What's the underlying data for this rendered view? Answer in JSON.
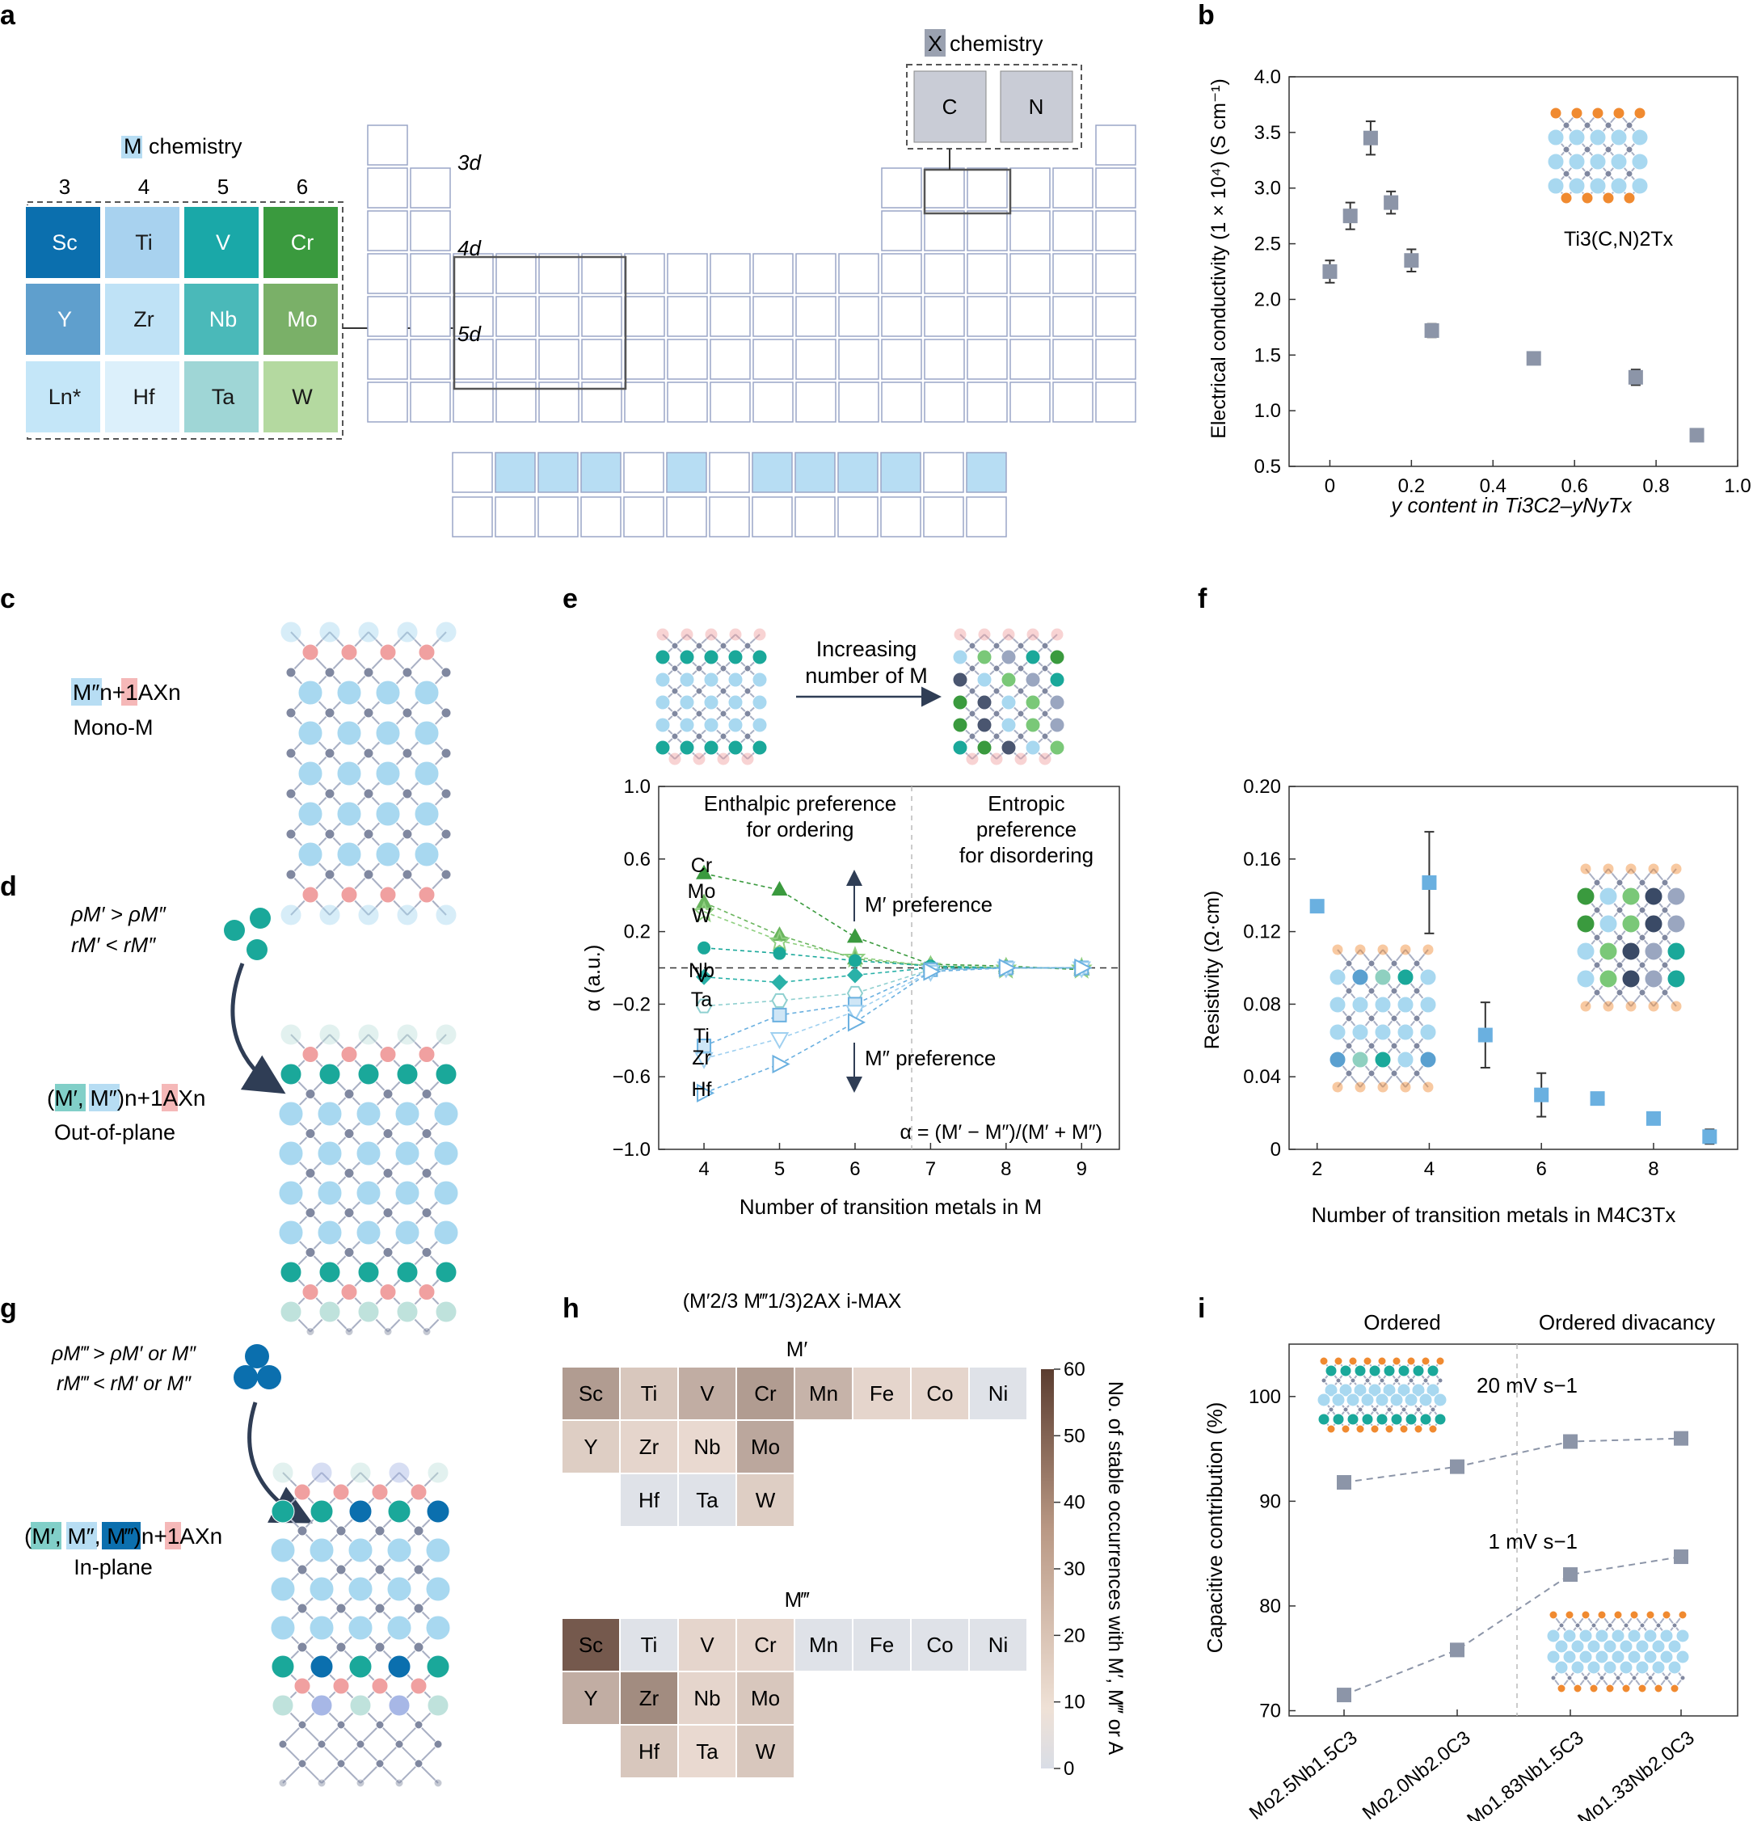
{
  "panel_labels": [
    "a",
    "b",
    "c",
    "d",
    "e",
    "f",
    "g",
    "h",
    "i"
  ],
  "colors": {
    "teal": "#1aa89a",
    "light_blue": "#b7ddf3",
    "green": "#3a9a3e",
    "pink": "#f0a0a0",
    "grey_marker": "#8c95a8",
    "axis": "#333333",
    "box_grey": "#c9ccd6"
  },
  "panel_a": {
    "m_header": "M",
    "m_header_suffix": "chemistry",
    "x_header": "X",
    "x_header_suffix": "chemistry",
    "groups": [
      "3",
      "4",
      "5",
      "6"
    ],
    "elements": [
      [
        "Sc",
        "Ti",
        "V",
        "Cr"
      ],
      [
        "Y",
        "Zr",
        "Nb",
        "Mo"
      ],
      [
        "Ln*",
        "Hf",
        "Ta",
        "W"
      ]
    ],
    "element_colors": [
      [
        "#0b6fae",
        "#a8d2ef",
        "#1aa8a8",
        "#3a9a3e"
      ],
      [
        "#5f9fcd",
        "#bfe2f6",
        "#4ab9b9",
        "#7ab068"
      ],
      [
        "#c4e6f8",
        "#dcf0fb",
        "#9fd6d6",
        "#b4d9a0"
      ]
    ],
    "x_elements": [
      "C",
      "N"
    ],
    "shell_labels": [
      "3d",
      "4d",
      "5d"
    ]
  },
  "panel_b": {
    "chart_data": {
      "type": "scatter",
      "xlabel": "y content in Ti3C2–yNyTx",
      "ylabel": "Electrical conductivity (1 × 10⁴) (S cm⁻¹)",
      "x_ticks": [
        "0",
        "0.2",
        "0.4",
        "0.6",
        "0.8",
        "1.0"
      ],
      "y_ticks": [
        "0.5",
        "1.0",
        "1.5",
        "2.0",
        "2.5",
        "3.0",
        "3.5",
        "4.0"
      ],
      "xlim": [
        -0.1,
        1.0
      ],
      "ylim": [
        0.5,
        4.0
      ],
      "x": [
        0,
        0.05,
        0.1,
        0.15,
        0.2,
        0.25,
        0.5,
        0.75,
        0.9
      ],
      "y": [
        2.25,
        2.75,
        3.45,
        2.87,
        2.35,
        1.72,
        1.47,
        1.3,
        0.78
      ],
      "err": [
        0.1,
        0.12,
        0.15,
        0.1,
        0.1,
        0.06,
        0.04,
        0.07,
        0.04
      ],
      "inset_label": "Ti3(C,N)2Tx"
    }
  },
  "panel_c": {
    "formula": "M″n+1AXn",
    "caption": "Mono-M"
  },
  "panel_d": {
    "rule1": "ρM′ > ρM″",
    "rule2": "rM′ < rM″",
    "formula": "(M′, M″)n+1AXn",
    "caption": "Out-of-plane"
  },
  "panel_g": {
    "rule1": "ρM‴ > ρM′ or M″",
    "rule2": "rM‴ < rM′ or M″",
    "formula": "(M′, M″, M‴)n+1AXn",
    "caption": "In-plane"
  },
  "panel_e": {
    "arrow_label_1": "Increasing",
    "arrow_label_2": "number of M",
    "chart_data": {
      "type": "scatter",
      "xlabel": "Number of transition metals in M",
      "ylabel": "α (a.u.)",
      "x_ticks": [
        "4",
        "5",
        "6",
        "7",
        "8",
        "9"
      ],
      "y_ticks": [
        "1.0",
        "0.6",
        "0.2",
        "−0.2",
        "−0.6",
        "−1.0"
      ],
      "xlim": [
        3.4,
        9.5
      ],
      "ylim": [
        -1.0,
        1.0
      ],
      "region_left": "Enthalpic preference for ordering",
      "region_left_1": "Enthalpic preference",
      "region_left_2": "for ordering",
      "region_right_1": "Entropic",
      "region_right_2": "preference",
      "region_right_3": "for disordering",
      "upper_note": "M′ preference",
      "lower_note": "M″ preference",
      "formula": "α = (M′ − M″)/(M′ + M″)",
      "series": [
        {
          "name": "Cr",
          "x": [
            4,
            5,
            6,
            7,
            8,
            9
          ],
          "y": [
            0.52,
            0.43,
            0.17,
            0.02,
            0.01,
            -0.01
          ]
        },
        {
          "name": "Mo",
          "x": [
            4,
            5,
            6,
            7,
            8,
            9
          ],
          "y": [
            0.36,
            0.18,
            0.05,
            0.01,
            0.0,
            0.0
          ]
        },
        {
          "name": "W",
          "x": [
            4,
            5,
            6,
            7,
            8,
            9
          ],
          "y": [
            0.31,
            0.15,
            0.06,
            0.01,
            0.0,
            0.0
          ]
        },
        {
          "name": "V",
          "x": [
            4,
            5,
            6,
            7,
            8,
            9
          ],
          "y": [
            0.11,
            0.08,
            0.04,
            0.01,
            0.0,
            0.0
          ]
        },
        {
          "name": "Nb",
          "x": [
            4,
            5,
            6,
            7,
            8,
            9
          ],
          "y": [
            -0.05,
            -0.08,
            -0.04,
            0.0,
            0.0,
            0.0
          ]
        },
        {
          "name": "Ta",
          "x": [
            4,
            5,
            6,
            7,
            8,
            9
          ],
          "y": [
            -0.21,
            -0.18,
            -0.14,
            -0.01,
            0.0,
            0.0
          ]
        },
        {
          "name": "Ti",
          "x": [
            4,
            5,
            6,
            7,
            8,
            9
          ],
          "y": [
            -0.43,
            -0.26,
            -0.2,
            -0.01,
            0.0,
            0.0
          ]
        },
        {
          "name": "Zr",
          "x": [
            4,
            5,
            6,
            7,
            8,
            9
          ],
          "y": [
            -0.5,
            -0.39,
            -0.24,
            -0.02,
            0.0,
            0.0
          ]
        },
        {
          "name": "Hf",
          "x": [
            4,
            5,
            6,
            7,
            8,
            9
          ],
          "y": [
            -0.69,
            -0.53,
            -0.3,
            -0.02,
            0.0,
            0.0
          ]
        }
      ]
    }
  },
  "panel_f": {
    "chart_data": {
      "type": "scatter",
      "xlabel": "Number of transition metals in M4C3Tx",
      "ylabel": "Resistivity (Ω·cm)",
      "x_ticks": [
        "2",
        "4",
        "6",
        "8"
      ],
      "y_ticks": [
        "0",
        "0.04",
        "0.08",
        "0.12",
        "0.16",
        "0.20"
      ],
      "xlim": [
        1.5,
        9.5
      ],
      "ylim": [
        0,
        0.2
      ],
      "x": [
        2,
        4,
        5,
        6,
        7,
        8,
        9
      ],
      "y": [
        0.134,
        0.147,
        0.063,
        0.03,
        0.028,
        0.017,
        0.007
      ],
      "err": [
        0.003,
        0.028,
        0.018,
        0.012,
        0.003,
        0.001,
        0.004
      ]
    }
  },
  "panel_h": {
    "title": "(M′2/3 M‴1/3)2AX i-MAX",
    "top_label": "M′",
    "bottom_label": "M‴",
    "colorbar_label": "No. of stable occurrences with M′, M‴ or A",
    "colorbar_ticks": [
      "60",
      "50",
      "40",
      "30",
      "20",
      "10",
      "0"
    ],
    "chart_data": {
      "type": "heatmap",
      "m_prime": [
        {
          "el": "Sc",
          "v": 22
        },
        {
          "el": "Ti",
          "v": 8
        },
        {
          "el": "V",
          "v": 16
        },
        {
          "el": "Cr",
          "v": 22
        },
        {
          "el": "Mn",
          "v": 14
        },
        {
          "el": "Fe",
          "v": 4
        },
        {
          "el": "Co",
          "v": 4
        },
        {
          "el": "Ni",
          "v": 0
        },
        {
          "el": "Y",
          "v": 6
        },
        {
          "el": "Zr",
          "v": 4
        },
        {
          "el": "Nb",
          "v": 3
        },
        {
          "el": "Mo",
          "v": 18
        },
        {
          "el": "Hf",
          "v": 0
        },
        {
          "el": "Ta",
          "v": 0
        },
        {
          "el": "W",
          "v": 6
        }
      ],
      "m_triple_prime": [
        {
          "el": "Sc",
          "v": 48
        },
        {
          "el": "Ti",
          "v": 0
        },
        {
          "el": "V",
          "v": 4
        },
        {
          "el": "Cr",
          "v": 4
        },
        {
          "el": "Mn",
          "v": 0
        },
        {
          "el": "Fe",
          "v": 0
        },
        {
          "el": "Co",
          "v": 0
        },
        {
          "el": "Ni",
          "v": 0
        },
        {
          "el": "Y",
          "v": 16
        },
        {
          "el": "Zr",
          "v": 28
        },
        {
          "el": "Nb",
          "v": 4
        },
        {
          "el": "Mo",
          "v": 8
        },
        {
          "el": "Hf",
          "v": 8
        },
        {
          "el": "Ta",
          "v": 3
        },
        {
          "el": "W",
          "v": 8
        }
      ]
    }
  },
  "panel_i": {
    "header_left": "Ordered",
    "header_right": "Ordered divacancy",
    "chart_data": {
      "type": "line",
      "ylabel": "Capacitive contribution (%)",
      "categories": [
        "Mo2.5Nb1.5C3",
        "Mo2.0Nb2.0C3",
        "Mo1.83Nb1.5C3",
        "Mo1.33Nb2.0C3"
      ],
      "y_ticks": [
        "70",
        "80",
        "90",
        "100"
      ],
      "ylim": [
        69.5,
        105
      ],
      "series": [
        {
          "name": "20 mV s−1",
          "values": [
            91.8,
            93.3,
            95.7,
            96.0
          ]
        },
        {
          "name": "1 mV s−1",
          "values": [
            71.5,
            75.8,
            83.0,
            84.7
          ]
        }
      ]
    }
  }
}
